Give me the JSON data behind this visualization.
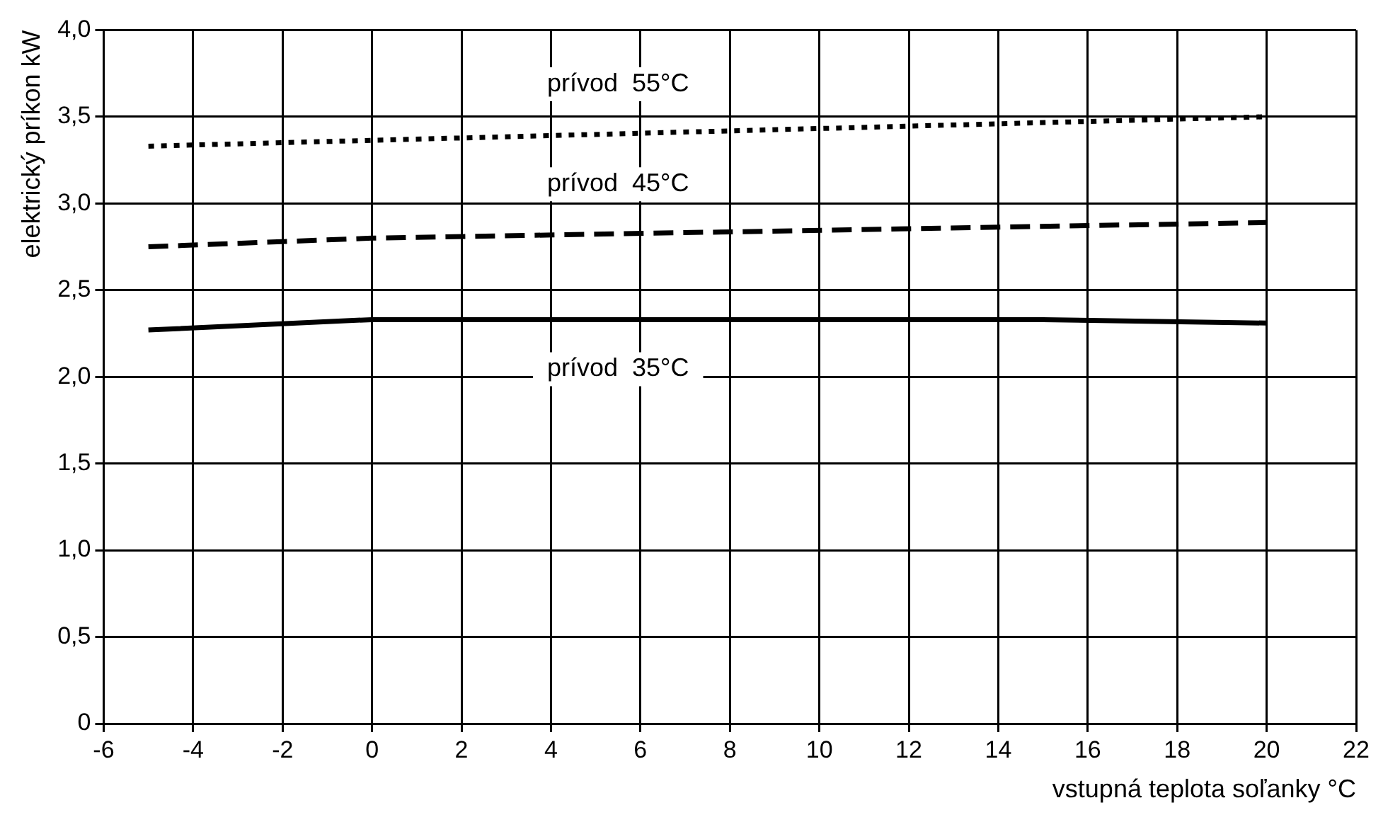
{
  "chart_data": {
    "type": "line",
    "xlabel": "vstupná teplota soľanky °C",
    "ylabel": "elektrický príkon kW",
    "series": [
      {
        "name": "prívod  55°C",
        "color": "#000000",
        "line_style": "dotted",
        "x": [
          -5,
          20
        ],
        "values": [
          3.33,
          3.5
        ]
      },
      {
        "name": "prívod  45°C",
        "color": "#000000",
        "line_style": "dashed",
        "x": [
          -5,
          0,
          20
        ],
        "values": [
          2.75,
          2.8,
          2.89
        ]
      },
      {
        "name": "prívod  35°C",
        "color": "#000000",
        "line_style": "solid",
        "x": [
          -5,
          0,
          15,
          20
        ],
        "values": [
          2.27,
          2.33,
          2.33,
          2.31
        ]
      }
    ],
    "xlim": [
      -6,
      22
    ],
    "xticks": [
      -6,
      -4,
      -2,
      0,
      2,
      4,
      6,
      8,
      10,
      12,
      14,
      16,
      18,
      20,
      22
    ],
    "ylim": [
      0,
      4
    ],
    "yticks": [
      0,
      {
        "value": 0.5,
        "label": "0,5"
      },
      {
        "value": 1,
        "label": "1,0"
      },
      {
        "value": 1.5,
        "label": "1,5"
      },
      {
        "value": 2,
        "label": "2,0"
      },
      {
        "value": 2.5,
        "label": "2,5"
      },
      {
        "value": 3,
        "label": "3,0"
      },
      {
        "value": 3.5,
        "label": "3,5"
      },
      {
        "value": 4,
        "label": "4,0"
      }
    ],
    "grid": true,
    "legend": false,
    "marker": "none"
  }
}
